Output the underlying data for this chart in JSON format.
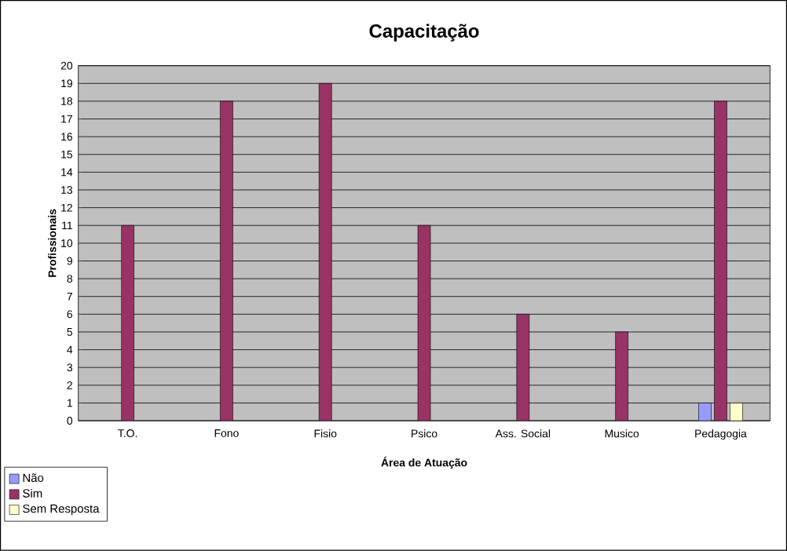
{
  "chart_data": {
    "type": "bar",
    "title": "Capacitação",
    "xlabel": "Área de Atuação",
    "ylabel": "Profissionais",
    "categories": [
      "T.O.",
      "Fono",
      "Fisio",
      "Psico",
      "Ass. Social",
      "Musico",
      "Pedagogia"
    ],
    "series": [
      {
        "name": "Não",
        "color": "#9999ff",
        "values": [
          null,
          null,
          null,
          null,
          null,
          null,
          1
        ]
      },
      {
        "name": "Sim",
        "color": "#993366",
        "values": [
          11,
          18,
          19,
          11,
          6,
          5,
          18
        ]
      },
      {
        "name": "Sem Resposta",
        "color": "#ffffcc",
        "values": [
          null,
          null,
          null,
          null,
          null,
          null,
          1
        ]
      }
    ],
    "ylim": [
      0,
      20
    ],
    "yticks": [
      0,
      1,
      2,
      3,
      4,
      5,
      6,
      7,
      8,
      9,
      10,
      11,
      12,
      13,
      14,
      15,
      16,
      17,
      18,
      19,
      20
    ],
    "grid": "y",
    "legend": "bottom left"
  }
}
